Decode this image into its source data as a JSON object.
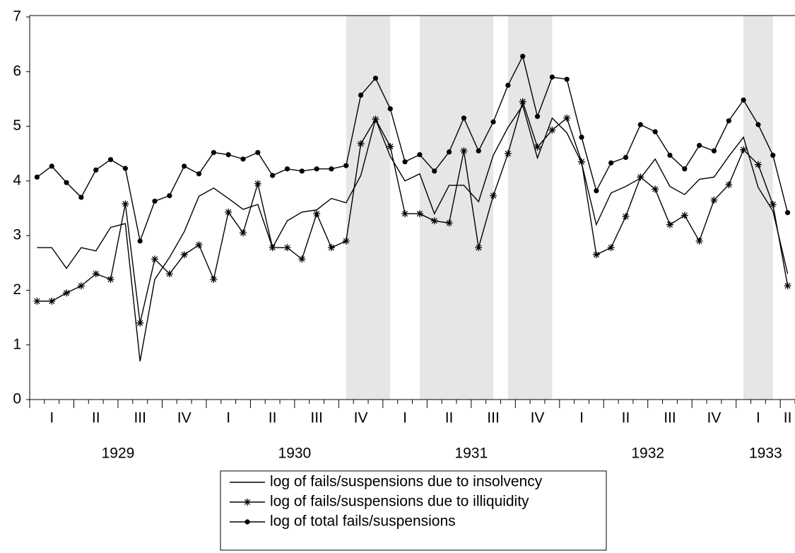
{
  "chart_data": {
    "type": "line",
    "categories": [
      null,
      "I",
      null,
      null,
      "II",
      null,
      null,
      "III",
      null,
      null,
      "IV",
      null,
      null,
      "I",
      null,
      null,
      "II",
      null,
      null,
      "III",
      null,
      null,
      "IV",
      null,
      null,
      "I",
      null,
      null,
      "II",
      null,
      null,
      "III",
      null,
      null,
      "IV",
      null,
      null,
      "I",
      null,
      null,
      "II",
      null,
      null,
      "III",
      null,
      null,
      "IV",
      null,
      null,
      "I",
      null,
      "II"
    ],
    "years": [
      "1929",
      "1930",
      "1931",
      "1932",
      "1933"
    ],
    "ylim": [
      0,
      7
    ],
    "yticks": [
      0,
      1,
      2,
      3,
      4,
      5,
      6,
      7
    ],
    "shaded_periods": [
      [
        21,
        24
      ],
      [
        26,
        31
      ],
      [
        32,
        35
      ],
      [
        48,
        50
      ]
    ],
    "shade_color": "#e6e6e6",
    "legend": "bottom",
    "series": [
      {
        "name": "log of fails/suspensions due to insolvency",
        "color": "#000000",
        "marker": "none",
        "values": [
          2.78,
          2.78,
          2.4,
          2.78,
          2.72,
          3.15,
          3.22,
          0.7,
          2.2,
          2.6,
          3.07,
          3.72,
          3.87,
          3.68,
          3.48,
          3.57,
          2.78,
          3.27,
          3.43,
          3.47,
          3.68,
          3.6,
          4.1,
          5.13,
          4.45,
          4.0,
          4.13,
          3.4,
          3.92,
          3.92,
          3.62,
          4.47,
          4.98,
          5.38,
          4.42,
          5.15,
          4.88,
          4.33,
          3.2,
          3.78,
          3.9,
          4.05,
          4.4,
          3.9,
          3.75,
          4.03,
          4.07,
          4.45,
          4.8,
          3.88,
          3.45,
          2.3
        ]
      },
      {
        "name": "log of fails/suspensions due to illiquidity",
        "color": "#000000",
        "marker": "asterisk",
        "values": [
          1.8,
          1.8,
          1.95,
          2.08,
          2.3,
          2.2,
          3.58,
          1.4,
          2.57,
          2.3,
          2.65,
          2.83,
          2.2,
          3.43,
          3.05,
          3.95,
          2.78,
          2.78,
          2.57,
          3.4,
          2.78,
          2.9,
          4.68,
          5.13,
          4.63,
          3.4,
          3.4,
          3.27,
          3.23,
          4.55,
          2.78,
          3.73,
          4.5,
          5.45,
          4.62,
          4.93,
          5.15,
          4.35,
          2.65,
          2.78,
          3.35,
          4.07,
          3.85,
          3.2,
          3.37,
          2.9,
          3.65,
          3.93,
          4.57,
          4.3,
          3.57,
          2.08
        ]
      },
      {
        "name": "log of total fails/suspensions",
        "color": "#000000",
        "marker": "dot",
        "values": [
          4.07,
          4.27,
          3.97,
          3.7,
          4.2,
          4.39,
          4.23,
          2.9,
          3.63,
          3.73,
          4.27,
          4.13,
          4.52,
          4.48,
          4.4,
          4.52,
          4.1,
          4.22,
          4.18,
          4.22,
          4.22,
          4.28,
          5.57,
          5.88,
          5.32,
          4.35,
          4.48,
          4.18,
          4.53,
          5.15,
          4.55,
          5.08,
          5.75,
          6.28,
          5.18,
          5.9,
          5.86,
          4.8,
          3.82,
          4.33,
          4.43,
          5.03,
          4.9,
          4.47,
          4.22,
          4.65,
          4.55,
          5.1,
          5.48,
          5.03,
          4.47,
          3.42
        ]
      }
    ]
  }
}
